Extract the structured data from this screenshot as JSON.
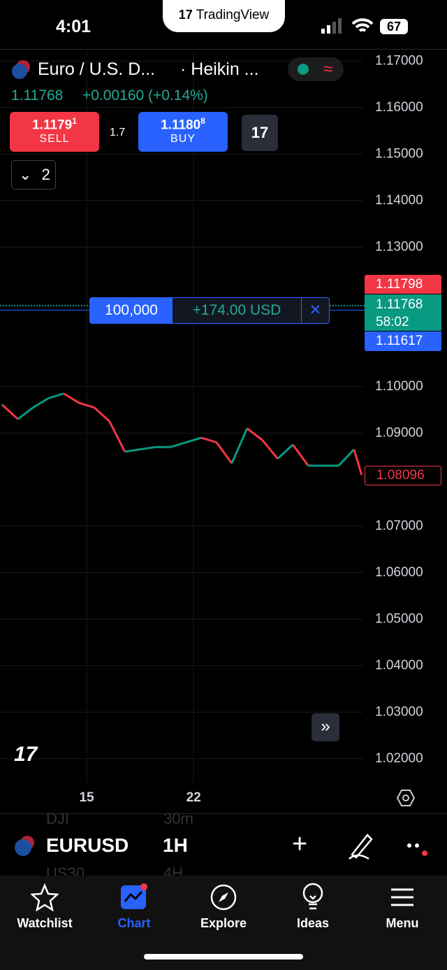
{
  "status_bar": {
    "time": "4:01",
    "app": "TradingView",
    "battery": "67"
  },
  "header": {
    "symbol": "Euro / U.S. D...",
    "chart_style": "· Heikin ...",
    "price": "1.11768",
    "change": "+0.00160 (+0.14%)"
  },
  "trade": {
    "sell_price": "1.1179",
    "sell_price_sup": "1",
    "sell_label": "SELL",
    "spread": "1.7",
    "buy_price": "1.1180",
    "buy_price_sup": "8",
    "buy_label": "BUY",
    "indicators_count": "2"
  },
  "position": {
    "quantity": "100,000",
    "pnl": "+174.00 USD"
  },
  "price_tags": {
    "ask": "1.11798",
    "last": "1.11768",
    "countdown": "58:02",
    "position_price": "1.11617",
    "crosshair_price": "1.08096"
  },
  "chart_data": {
    "type": "candlestick",
    "x": [
      9.5,
      10.5,
      11.5,
      12.5,
      13.5,
      14.5,
      15.5,
      16.5,
      17.5,
      18.5,
      19.5,
      20.5,
      21.5,
      22.5,
      23.5,
      24.5,
      25.5,
      26.5,
      27.5,
      28.5,
      29.5,
      30.5,
      31.5,
      32.5,
      33
    ],
    "values": [
      1.096,
      1.093,
      1.0955,
      1.0975,
      1.0985,
      1.0965,
      1.0955,
      1.0925,
      1.086,
      1.0865,
      1.087,
      1.087,
      1.088,
      1.089,
      1.088,
      1.0835,
      1.091,
      1.0885,
      1.0845,
      1.0875,
      1.083,
      1.083,
      1.083,
      1.0865,
      1.081
    ],
    "up_color": "#089981",
    "down_color": "#f23645",
    "xlim": [
      9.33,
      33.1
    ],
    "xticks": [
      15,
      22
    ],
    "ylim": [
      1.0147,
      1.1723
    ],
    "yticks": [
      {
        "value": 1.17,
        "label": "1.17000"
      },
      {
        "value": 1.16,
        "label": "1.16000"
      },
      {
        "value": 1.15,
        "label": "1.15000"
      },
      {
        "value": 1.14,
        "label": "1.14000"
      },
      {
        "value": 1.13,
        "label": "1.13000"
      },
      {
        "value": 1.1,
        "label": "1.10000"
      },
      {
        "value": 1.09,
        "label": "1.09000"
      },
      {
        "value": 1.07,
        "label": "1.07000"
      },
      {
        "value": 1.06,
        "label": "1.06000"
      },
      {
        "value": 1.05,
        "label": "1.05000"
      },
      {
        "value": 1.04,
        "label": "1.04000"
      },
      {
        "value": 1.03,
        "label": "1.03000"
      },
      {
        "value": 1.02,
        "label": "1.02000"
      }
    ],
    "grid": true
  },
  "toolbar": {
    "symbol": "EURUSD",
    "interval": "1H",
    "ghost_symbol_above": "DJI",
    "ghost_interval_above": "30m",
    "ghost_symbol_below": "US30",
    "ghost_interval_below": "4H"
  },
  "nav": [
    "Watchlist",
    "Chart",
    "Explore",
    "Ideas",
    "Menu"
  ]
}
